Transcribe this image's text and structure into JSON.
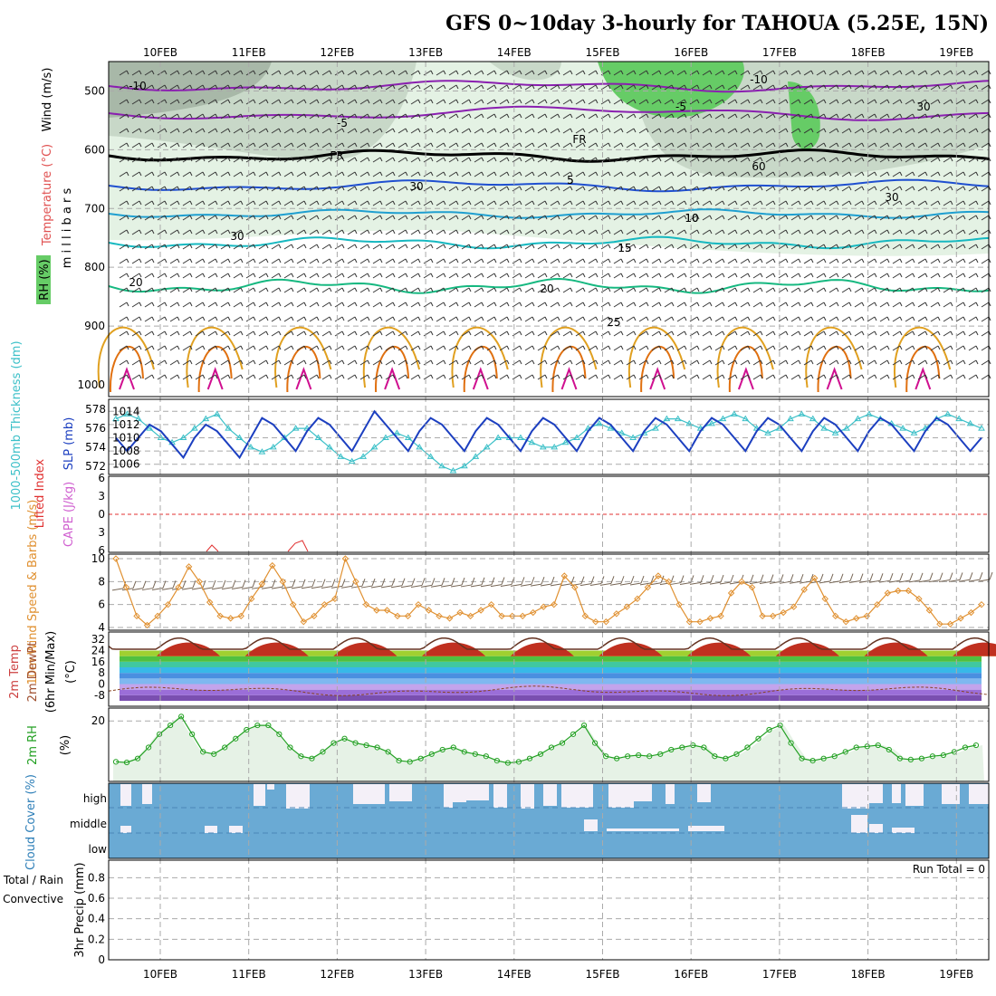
{
  "title": "GFS 0~10day 3-hourly for TAHOUA (5.25E, 15N)",
  "dates": [
    "10FEB",
    "11FEB",
    "12FEB",
    "13FEB",
    "14FEB",
    "15FEB",
    "16FEB",
    "17FEB",
    "18FEB",
    "19FEB"
  ],
  "colors": {
    "frame": "#000000",
    "grid": "#aaaaaa",
    "rh_fill_light": "#e4f2e4",
    "rh_fill_mid": "#c8d8c8",
    "rh_fill_dark": "#a8b8a8",
    "rh_fill_green": "#66cc66",
    "t_neg10": "#8a1fb0",
    "t_neg5": "#8a1fb0",
    "t_5": "#1f4fd0",
    "t_10": "#1f9fd0",
    "t_15": "#16b8c0",
    "t_20": "#16b880",
    "t_25": "#e0a020",
    "t_30": "#e07010",
    "t_35": "#d01090",
    "slp": "#1c3fc0",
    "thickness": "#3cc0c8",
    "li": "#e03030",
    "cape": "#d060d0",
    "wind10": "#e09030",
    "rh2m": "#22a022",
    "cloud": "#6aaad4",
    "cloud_gap": "#f4f0f8"
  },
  "chart_data": [
    {
      "panel": "upper-air",
      "type": "heatmap",
      "ylabel_parts": [
        "Wind (m/s)",
        "Temperature (°C)",
        "RH (%)",
        "m i l l i b a r s"
      ],
      "yticks": [
        "500",
        "600",
        "700",
        "800",
        "900",
        "1000"
      ],
      "isotherm_labels": [
        "-10",
        "-5",
        "FR",
        "5",
        "10",
        "15",
        "20",
        "25",
        "-10",
        "-5",
        "FR",
        "5",
        "10",
        "15",
        "20",
        "30",
        "60",
        "30",
        "30",
        "30"
      ]
    },
    {
      "panel": "slp-thickness",
      "type": "line",
      "ylabel_left": "1000-500mb Thickness (dm)",
      "ylabel_right": "SLP (mb)",
      "yticks_left": [
        "578",
        "576",
        "574",
        "572"
      ],
      "yticks_right": [
        "1014",
        "1012",
        "1010",
        "1008",
        "1006"
      ],
      "slp": [
        1010,
        1008,
        1010,
        1012,
        1011,
        1009,
        1007,
        1010,
        1012,
        1011,
        1009,
        1007,
        1010,
        1013,
        1012,
        1010,
        1008,
        1011,
        1013,
        1012,
        1010,
        1008,
        1011,
        1014,
        1012,
        1010,
        1008,
        1011,
        1013,
        1012,
        1010,
        1008,
        1011,
        1013,
        1012,
        1010,
        1008,
        1011,
        1013,
        1012,
        1010,
        1008,
        1011,
        1013,
        1012,
        1010,
        1008,
        1011,
        1013,
        1012,
        1010,
        1008,
        1011,
        1013,
        1012,
        1010,
        1008,
        1011,
        1013,
        1012,
        1010,
        1008,
        1011,
        1013,
        1012,
        1010,
        1008,
        1011,
        1013,
        1012,
        1010,
        1008,
        1011,
        1013,
        1012,
        1010,
        1008,
        1010
      ],
      "thickness": [
        577,
        577.5,
        577,
        576,
        575,
        574.5,
        575,
        576,
        577,
        577.5,
        576,
        575,
        574,
        573.5,
        574,
        575,
        576,
        576,
        575,
        574,
        573,
        572.5,
        573,
        574,
        575,
        575.5,
        575,
        574,
        573,
        572,
        571.5,
        572,
        573,
        574,
        575,
        575,
        575,
        574.5,
        574,
        574,
        574.5,
        575,
        576,
        576.5,
        576,
        575.5,
        575,
        575.5,
        576,
        577,
        577,
        576.5,
        576,
        576.5,
        577,
        577.5,
        577,
        576,
        575.5,
        576,
        577,
        577.5,
        577,
        576,
        575.5,
        576,
        577,
        577.5,
        577,
        576.5,
        576,
        575.5,
        576,
        577,
        577.5,
        577,
        576.5,
        576
      ]
    },
    {
      "panel": "li-cape",
      "type": "line",
      "ylabel_left": "Lifted Index",
      "ylabel_right": "CAPE (J/kg)",
      "yticks": [
        "-6",
        "-3",
        "0",
        "3",
        "6"
      ]
    },
    {
      "panel": "wind10m",
      "type": "line",
      "ylabel": "10m Wind Speed & Barbs (m/s)",
      "yticks": [
        "10",
        "8",
        "6",
        "4"
      ],
      "speed": [
        10,
        7.5,
        5,
        4.2,
        5,
        6,
        7.5,
        9.3,
        8,
        6.2,
        5,
        4.8,
        5,
        6.5,
        7.8,
        9.4,
        8,
        6,
        4.5,
        5,
        6,
        6.5,
        10,
        8,
        6,
        5.5,
        5.5,
        5,
        5,
        6,
        5.5,
        5,
        4.8,
        5.3,
        5,
        5.5,
        6,
        5,
        5,
        5,
        5.3,
        5.8,
        6,
        8.5,
        7.5,
        5,
        4.5,
        4.5,
        5.2,
        5.8,
        6.5,
        7.5,
        8.5,
        8,
        6,
        4.5,
        4.5,
        4.8,
        5,
        7,
        8,
        7.5,
        5,
        5,
        5.3,
        5.8,
        7.3,
        8.3,
        6.5,
        5,
        4.5,
        4.8,
        5,
        6,
        7,
        7.2,
        7.2,
        6.5,
        5.5,
        4.3,
        4.3,
        4.8,
        5.3,
        6
      ]
    },
    {
      "panel": "temp2m",
      "type": "area",
      "ylabel_parts": [
        "2m Temp",
        "2m DewPt",
        "(6hr Min/Max)",
        "(°C)"
      ],
      "yticks": [
        "32",
        "24",
        "16",
        "8",
        "0",
        "-8"
      ]
    },
    {
      "panel": "rh2m",
      "type": "line",
      "ylabel_parts": [
        "2m RH",
        "(%)"
      ],
      "yticks": [
        "20"
      ],
      "values": [
        1.5,
        1.2,
        3,
        8,
        14,
        18,
        22,
        14,
        6,
        5,
        8,
        12,
        16,
        18,
        18,
        14,
        8,
        4,
        3,
        6,
        10,
        12,
        10,
        9,
        8,
        6,
        2,
        1.5,
        3,
        5,
        7,
        8,
        6,
        5,
        4,
        2,
        1,
        1.5,
        3,
        5,
        8,
        10,
        14,
        18,
        10,
        4,
        3,
        4,
        4.5,
        4,
        5,
        7,
        8,
        9,
        8,
        4,
        3,
        5,
        8,
        12,
        16,
        18,
        10,
        3,
        2,
        3,
        4,
        6,
        8,
        8.5,
        9,
        7,
        3,
        2.5,
        3,
        4,
        4.5,
        6,
        8,
        9
      ]
    },
    {
      "panel": "cloud",
      "type": "bar",
      "ylabel": "Cloud Cover (%)",
      "yticks": [
        "high",
        "middle",
        "low"
      ]
    },
    {
      "panel": "precip",
      "type": "bar",
      "ylabel_parts": [
        "Total / Rain",
        "Convective",
        "3hr Precip (mm)"
      ],
      "yticks": [
        "0.8",
        "0.6",
        "0.4",
        "0.2",
        "0"
      ],
      "annotation": "Run Total = 0"
    }
  ]
}
